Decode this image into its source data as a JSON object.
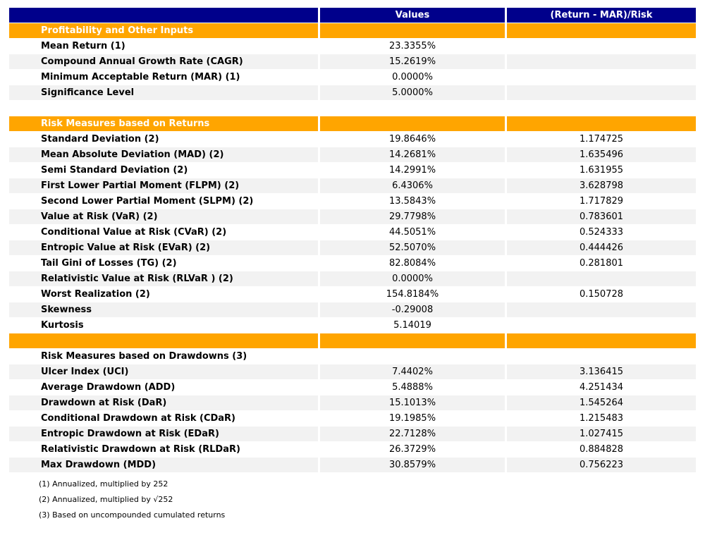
{
  "chart_data": {
    "type": "table",
    "columns": [
      "",
      "Values",
      "(Return - MAR)/Risk"
    ],
    "colors": {
      "header_bg": "#00008B",
      "section_bg": "#FFA500",
      "stripe_bg": "#F2F2F2",
      "header_text": "#FFFFFF"
    },
    "rows": [
      {
        "type": "section",
        "label": "Profitability and Other Inputs",
        "values": "",
        "risk": ""
      },
      {
        "type": "metric",
        "label": "Mean Return (1)",
        "values": "23.3355%",
        "risk": ""
      },
      {
        "type": "metric",
        "label": "Compound Annual Growth Rate (CAGR)",
        "values": "15.2619%",
        "risk": ""
      },
      {
        "type": "metric",
        "label": "Minimum Acceptable Return (MAR) (1)",
        "values": "0.0000%",
        "risk": ""
      },
      {
        "type": "metric",
        "label": "Significance Level",
        "values": "5.0000%",
        "risk": ""
      },
      {
        "type": "blank",
        "label": "",
        "values": "",
        "risk": ""
      },
      {
        "type": "section",
        "label": "Risk Measures based on Returns",
        "values": "",
        "risk": ""
      },
      {
        "type": "metric",
        "label": "Standard Deviation (2)",
        "values": "19.8646%",
        "risk": "1.174725"
      },
      {
        "type": "metric",
        "label": "Mean Absolute Deviation (MAD) (2)",
        "values": "14.2681%",
        "risk": "1.635496"
      },
      {
        "type": "metric",
        "label": "Semi Standard Deviation (2)",
        "values": "14.2991%",
        "risk": "1.631955"
      },
      {
        "type": "metric",
        "label": "First Lower Partial Moment (FLPM) (2)",
        "values": "6.4306%",
        "risk": "3.628798"
      },
      {
        "type": "metric",
        "label": "Second Lower Partial Moment (SLPM) (2)",
        "values": "13.5843%",
        "risk": "1.717829"
      },
      {
        "type": "metric",
        "label": "Value at Risk (VaR) (2)",
        "values": "29.7798%",
        "risk": "0.783601"
      },
      {
        "type": "metric",
        "label": "Conditional Value at Risk (CVaR) (2)",
        "values": "44.5051%",
        "risk": "0.524333"
      },
      {
        "type": "metric",
        "label": "Entropic Value at Risk (EVaR) (2)",
        "values": "52.5070%",
        "risk": "0.444426"
      },
      {
        "type": "metric",
        "label": "Tail Gini of Losses (TG) (2)",
        "values": "82.8084%",
        "risk": "0.281801"
      },
      {
        "type": "metric",
        "label": "Relativistic Value at Risk (RLVaR ) (2)",
        "values": "0.0000%",
        "risk": ""
      },
      {
        "type": "metric",
        "label": "Worst Realization (2)",
        "values": "154.8184%",
        "risk": "0.150728"
      },
      {
        "type": "metric",
        "label": "Skewness",
        "values": "-0.29008",
        "risk": ""
      },
      {
        "type": "metric",
        "label": "Kurtosis",
        "values": "5.14019",
        "risk": ""
      },
      {
        "type": "section",
        "label": "",
        "values": "",
        "risk": ""
      },
      {
        "type": "subheader",
        "label": "Risk Measures based on Drawdowns (3)",
        "values": "",
        "risk": ""
      },
      {
        "type": "metric",
        "label": "Ulcer Index (UCI)",
        "values": "7.4402%",
        "risk": "3.136415"
      },
      {
        "type": "metric",
        "label": "Average Drawdown (ADD)",
        "values": "5.4888%",
        "risk": "4.251434"
      },
      {
        "type": "metric",
        "label": "Drawdown at Risk (DaR)",
        "values": "15.1013%",
        "risk": "1.545264"
      },
      {
        "type": "metric",
        "label": "Conditional Drawdown at Risk (CDaR)",
        "values": "19.1985%",
        "risk": "1.215483"
      },
      {
        "type": "metric",
        "label": "Entropic Drawdown at Risk (EDaR)",
        "values": "22.7128%",
        "risk": "1.027415"
      },
      {
        "type": "metric",
        "label": "Relativistic Drawdown at Risk (RLDaR)",
        "values": "26.3729%",
        "risk": "0.884828"
      },
      {
        "type": "metric",
        "label": "Max Drawdown (MDD)",
        "values": "30.8579%",
        "risk": "0.756223"
      }
    ],
    "footnotes": [
      "(1) Annualized, multiplied by 252",
      "(2) Annualized, multiplied by √252",
      "(3) Based on uncompounded cumulated returns"
    ]
  }
}
